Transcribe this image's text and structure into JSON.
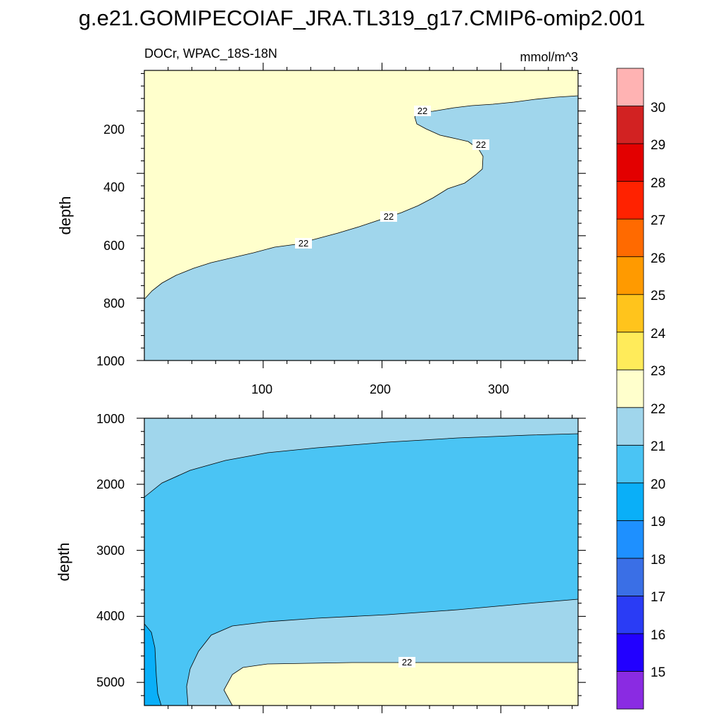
{
  "chart_data": {
    "type": "contour",
    "title": "g.e21.GOMIPECOIAF_JRA.TL319_g17.CMIP6-omip2.001",
    "subtitle_left": "DOCr, WPAC_18S-18N",
    "units": "mmol/m^3",
    "ylabel": "depth",
    "xlim": [
      0,
      365
    ],
    "x_ticks": [
      "100",
      "200",
      "300"
    ],
    "palette": [
      "#8A2BE2",
      "#2200FF",
      "#2A3CF5",
      "#3A6FE6",
      "#1E90FF",
      "#0AAFF8",
      "#4AC4F4",
      "#A0D6EC",
      "#FFFFCC",
      "#FFEB5A",
      "#FFC41C",
      "#FF9A00",
      "#FF6A00",
      "#FF2200",
      "#E30000",
      "#D22222",
      "#FFB3B3"
    ],
    "colorbar_labels": [
      "15",
      "16",
      "17",
      "18",
      "19",
      "20",
      "21",
      "22",
      "23",
      "24",
      "25",
      "26",
      "27",
      "28",
      "29",
      "30"
    ],
    "panels": [
      {
        "id": "upper",
        "ylim": [
          1000,
          70
        ],
        "y_ticks": [
          "200",
          "400",
          "600",
          "800",
          "1000"
        ],
        "contour_labels": [
          "22",
          "22",
          "22",
          "22"
        ]
      },
      {
        "id": "lower",
        "ylim": [
          5350,
          1000
        ],
        "y_ticks": [
          "1000",
          "2000",
          "3000",
          "4000",
          "5000"
        ],
        "contour_labels": [
          "22"
        ]
      }
    ]
  }
}
